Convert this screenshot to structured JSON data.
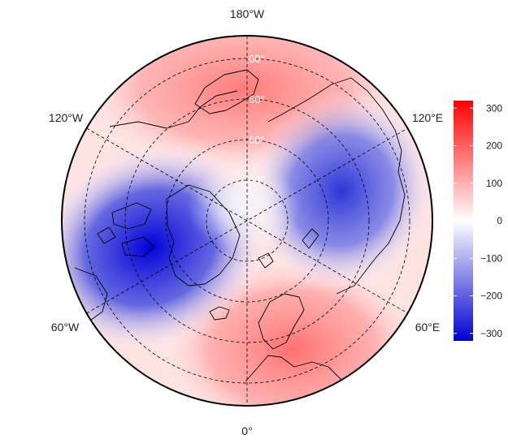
{
  "map": {
    "projection": "north-polar-stereographic",
    "center": "North Pole",
    "longitude_labels": [
      "180°W",
      "120°W",
      "120°E",
      "60°W",
      "60°E",
      "0°"
    ],
    "latitude_labels": [
      "60°",
      "60°",
      "60°",
      "80°"
    ],
    "field_pattern": [
      {
        "region": "North America / Canadian Arctic / Greenland",
        "sign": "negative",
        "approx_min": -300
      },
      {
        "region": "Central Siberia",
        "sign": "negative",
        "approx_min": -250
      },
      {
        "region": "Europe / North Atlantic",
        "sign": "positive",
        "approx_max": 150
      },
      {
        "region": "North Pacific / Alaska / Beringia",
        "sign": "positive",
        "approx_max": 150
      }
    ],
    "colors": {
      "negative": "#0000dd",
      "neutral": "#ffffff",
      "positive": "#ff1a1a",
      "coastline": "#000000"
    }
  },
  "colorbar": {
    "min": -320,
    "max": 320,
    "tick_values": [
      300,
      200,
      100,
      0,
      -100,
      -200,
      -300
    ],
    "tick_labels": [
      "300",
      "200",
      "100",
      "0",
      "−100",
      "−200",
      "−300"
    ],
    "colors": {
      "top": "#ff0000",
      "middle": "#ffffff",
      "bottom": "#0000d0"
    }
  }
}
